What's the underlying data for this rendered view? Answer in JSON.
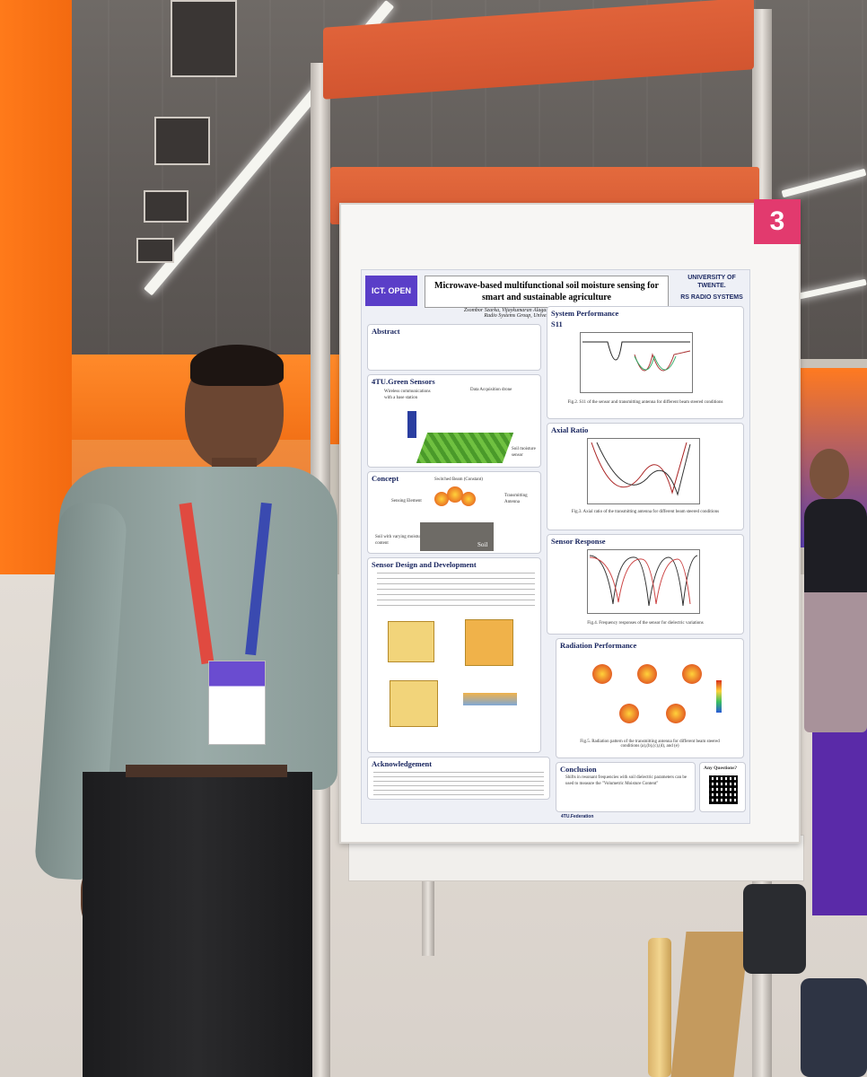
{
  "poster": {
    "number": "3",
    "title": "Microwave-based multifunctional soil moisture sensing for smart and sustainable agriculture",
    "authors": "Zsombor Szarka, Vijaykumaran Alagarsamy, André B.J. Kokkeler, Sujith Raman",
    "affiliation": "Radio Systems Group, University of Twente, The Netherlands",
    "logo_left": "ICT. OPEN",
    "logo_right_1": "UNIVERSITY OF TWENTE.",
    "logo_right_2": "RS RADIO SYSTEMS",
    "sections": {
      "abstract_title": "Abstract",
      "green_sensors_title": "4TU.Green Sensors",
      "green_labels": [
        "Wireless communications with a base station",
        "Data Acquisition drone",
        "Soil moisture sensor"
      ],
      "concept_title": "Concept",
      "concept_labels": [
        "Switched Beam (Constant)",
        "Sensing Element",
        "Transmitting Antenna",
        "Soil with varying moisture content",
        "Soil"
      ],
      "design_title": "Sensor Design and Development",
      "acknowledgement_title": "Acknowledgement",
      "system_performance_title": "System Performance",
      "s11_label": "S11",
      "fig2": "Fig.2. S11 of the sensor and transmitting antenna for different beam steered conditions",
      "axial_title": "Axial Ratio",
      "fig3": "Fig.3. Axial ratio of the transmitting antenna for different beam steered conditions",
      "sensor_response_title": "Sensor Response",
      "fig4": "Fig.4. Frequency responses of the sensor for dielectric variations",
      "radiation_title": "Radiation Performance",
      "fig5": "Fig.5. Radiation pattern of the transmitting antenna for different beam steered conditions (a),(b),(c),(d), and (e)",
      "conclusion_title": "Conclusion",
      "conclusion_text": "Shifts in resonant frequencies with soil dielectric parameters can be used to measure the \"Volumetric Moisture Content\"",
      "questions": "Any Questions?",
      "footer_logos": "4TU.Federation"
    }
  },
  "colors": {
    "accent_pink": "#e23a6e",
    "stand_orange": "#d9582f",
    "wall_orange": "#f36a10",
    "title_navy": "#16235d"
  }
}
